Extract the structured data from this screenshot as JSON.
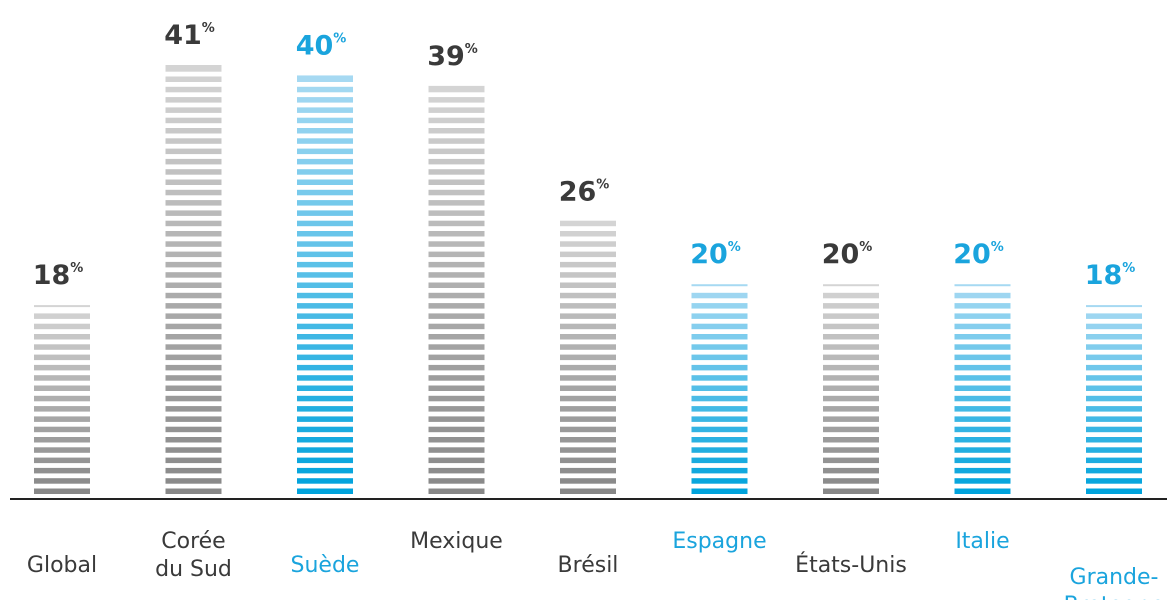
{
  "chart_data": {
    "type": "bar",
    "categories": [
      [
        "Global"
      ],
      [
        "Corée",
        "du Sud"
      ],
      [
        "Suède"
      ],
      [
        "Mexique"
      ],
      [
        "Brésil"
      ],
      [
        "Espagne"
      ],
      [
        "États-Unis"
      ],
      [
        "Italie"
      ],
      [
        "Grande-",
        "Bretagne"
      ]
    ],
    "values": [
      18,
      41,
      40,
      39,
      26,
      20,
      20,
      20,
      18
    ],
    "value_suffix": "%",
    "highlighted": [
      false,
      false,
      true,
      false,
      false,
      true,
      false,
      true,
      true
    ],
    "title": "",
    "xlabel": "",
    "ylabel": "",
    "ylim": [
      0,
      41
    ],
    "grid": false,
    "legend": "none",
    "colors": {
      "gray_bar_dark": "#888888",
      "gray_bar_light": "#d4d4d4",
      "blue_bar_dark": "#00a3dc",
      "blue_bar_light": "#a6d9f2",
      "gray_text": "#3a3a3a",
      "blue_text": "#1aa4dd",
      "axis": "#222222"
    }
  }
}
